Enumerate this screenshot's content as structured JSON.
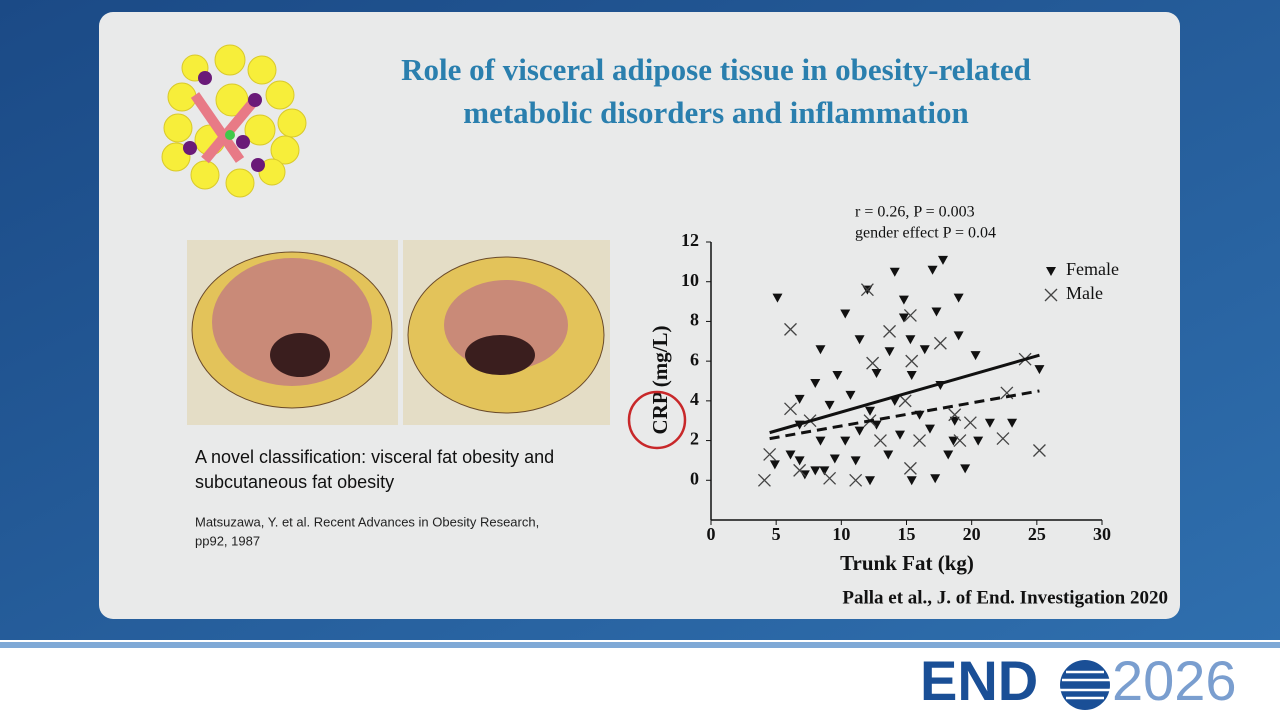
{
  "slide": {
    "title_line1": "Role of visceral adipose tissue in obesity-related",
    "title_line2": "metabolic disorders and inflammation",
    "caption_line1": "A novel classification: visceral fat obesity and",
    "caption_line2": "subcutaneous fat obesity",
    "reference_line1": "Matsuzawa, Y. et al. Recent Advances in Obesity Research,",
    "reference_line2": "pp92, 1987",
    "citation": "Palla et al., J. of End. Investigation 2020",
    "logo_left": "END",
    "logo_right": "2026"
  },
  "chart_data": {
    "type": "scatter",
    "annotations": [
      "r = 0.26, P = 0.003",
      "gender effect P = 0.04"
    ],
    "x_label": "Trunk Fat (kg)",
    "y_label": "CRP (mg/L)",
    "xlim": [
      0,
      30
    ],
    "xticks": [
      0,
      5,
      10,
      15,
      20,
      25,
      30
    ],
    "ylim": [
      -2,
      12
    ],
    "yticks": [
      0,
      2,
      4,
      6,
      8,
      10,
      12
    ],
    "legend": "top-right",
    "series": [
      {
        "name": "Female",
        "marker": "triangle-down",
        "color": "#111111",
        "x": [
          5.1,
          10.3,
          12.0,
          14.1,
          17.0,
          17.8,
          14.8,
          19.0,
          17.3,
          14.8,
          19.0,
          20.3,
          13.7,
          11.4,
          8.4,
          25.2,
          8.0,
          9.7,
          12.7,
          15.4,
          17.6,
          6.8,
          9.1,
          10.7,
          12.2,
          14.1,
          16.0,
          18.7,
          21.4,
          23.1,
          6.8,
          8.4,
          10.3,
          11.4,
          12.7,
          14.5,
          16.8,
          18.6,
          20.5,
          4.9,
          6.1,
          6.8,
          7.2,
          8.0,
          8.7,
          9.5,
          11.1,
          12.2,
          13.6,
          15.4,
          17.2,
          18.2,
          19.5,
          15.3,
          16.4
        ],
        "values": [
          9.2,
          8.4,
          9.6,
          10.5,
          10.6,
          11.1,
          9.1,
          9.2,
          8.5,
          8.2,
          7.3,
          6.3,
          6.5,
          7.1,
          6.6,
          5.6,
          4.9,
          5.3,
          5.4,
          5.3,
          4.8,
          4.1,
          3.8,
          4.3,
          3.5,
          4.0,
          3.3,
          3.0,
          2.9,
          2.9,
          2.8,
          2.0,
          2.0,
          2.5,
          2.8,
          2.3,
          2.6,
          2.0,
          2.0,
          0.8,
          1.3,
          1.0,
          0.3,
          0.5,
          0.5,
          1.1,
          1.0,
          0,
          1.3,
          0,
          0.1,
          1.3,
          0.6,
          7.1,
          6.6
        ]
      },
      {
        "name": "Male",
        "marker": "x",
        "color": "#444444",
        "x": [
          6.1,
          12.0,
          15.3,
          13.7,
          17.6,
          15.4,
          12.4,
          24.1,
          6.1,
          7.6,
          12.2,
          14.9,
          18.7,
          19.9,
          22.7,
          22.4,
          25.2,
          19.1,
          4.5,
          4.1,
          6.8,
          9.1,
          11.1,
          15.3,
          13.0,
          16.0
        ],
        "values": [
          7.6,
          9.6,
          8.3,
          7.5,
          6.9,
          6.0,
          5.9,
          6.1,
          3.6,
          3.0,
          3.0,
          4.0,
          3.3,
          2.9,
          4.4,
          2.1,
          1.5,
          2.0,
          1.3,
          0,
          0.5,
          0.1,
          0,
          0.6,
          2.0,
          2.0
        ]
      }
    ],
    "fits": [
      {
        "style": "solid",
        "x": [
          4.5,
          25.2
        ],
        "values": [
          2.4,
          6.3
        ]
      },
      {
        "style": "dashed",
        "x": [
          4.5,
          25.2
        ],
        "values": [
          2.1,
          4.5
        ]
      }
    ]
  }
}
